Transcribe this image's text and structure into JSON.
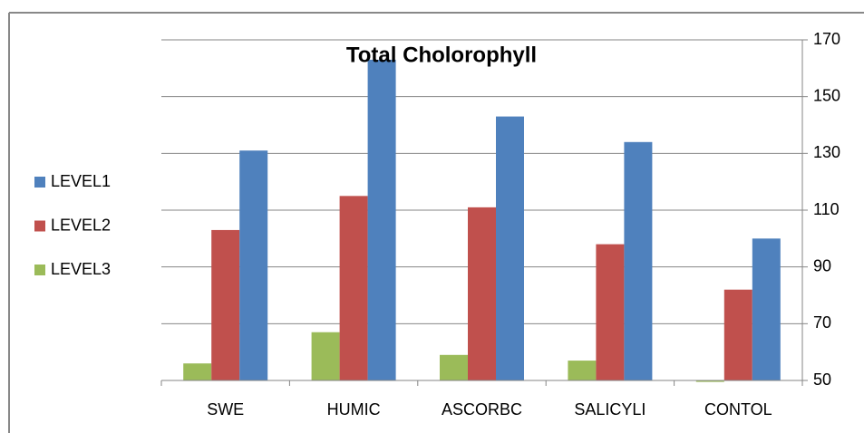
{
  "chart_data": {
    "type": "bar",
    "title": "Total Cholorophyll",
    "categories": [
      "SWE",
      "HUMIC",
      "ASCORBC",
      "SALICYLI",
      "CONTOL"
    ],
    "series": [
      {
        "name": "LEVEL1",
        "color": "#4f81bd",
        "values": [
          131,
          163,
          143,
          134,
          100
        ]
      },
      {
        "name": "LEVEL2",
        "color": "#c0504d",
        "values": [
          103,
          115,
          111,
          98,
          82
        ]
      },
      {
        "name": "LEVEL3",
        "color": "#9bbb59",
        "values": [
          56,
          67,
          59,
          57,
          49.5
        ]
      }
    ],
    "ylim": [
      50,
      170
    ],
    "yticks": [
      50,
      70,
      90,
      110,
      130,
      150,
      170
    ],
    "grid": true,
    "legend": "left"
  }
}
